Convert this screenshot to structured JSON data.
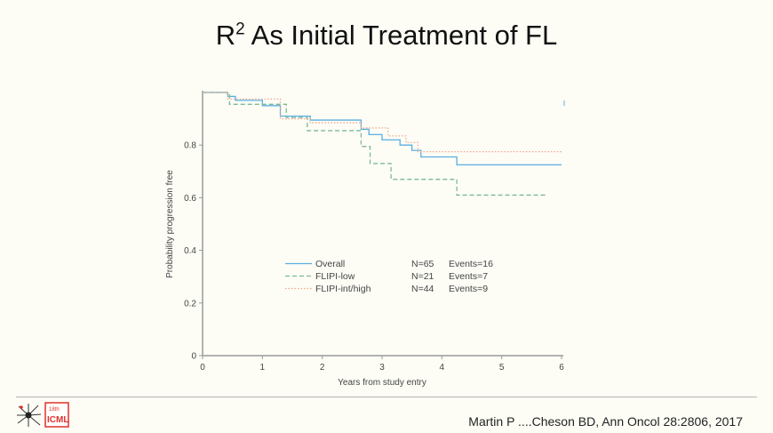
{
  "slide": {
    "title_prefix": "R",
    "title_sup": "2",
    "title_rest": " As Initial Treatment of FL",
    "citation": "Martin P ....Cheson BD, Ann Oncol 28:2806, 2017",
    "logo": {
      "edition": "18th",
      "name": "ICML",
      "color": "#e0312b"
    }
  },
  "chart_data": {
    "type": "line",
    "subtype": "kaplan-meier step",
    "title": "",
    "xlabel": "Years from study entry",
    "ylabel": "Probability progression free",
    "xlim": [
      0,
      6
    ],
    "ylim": [
      0,
      1
    ],
    "xticks": [
      "0",
      "1",
      "2",
      "3",
      "4",
      "5",
      "6"
    ],
    "yticks": [
      "0",
      "0.2",
      "0.4",
      "0.6",
      "0.8"
    ],
    "ytick_values": [
      0,
      0.2,
      0.4,
      0.6,
      0.8
    ],
    "grid": false,
    "legend_position": "bottom-center",
    "series": [
      {
        "name": "Overall",
        "n_label": "N=65",
        "events_label": "Events=16",
        "color": "#5aaee0",
        "dash": "solid",
        "x": [
          0,
          0.42,
          0.55,
          1.0,
          1.3,
          1.8,
          2.65,
          2.78,
          3.0,
          3.3,
          3.5,
          3.65,
          4.25,
          6.0
        ],
        "y": [
          1.0,
          0.985,
          0.97,
          0.95,
          0.91,
          0.895,
          0.86,
          0.84,
          0.82,
          0.8,
          0.78,
          0.755,
          0.725,
          0.725
        ]
      },
      {
        "name": "FLIPI-low",
        "n_label": "N=21",
        "events_label": "Events=7",
        "color": "#7cb89a",
        "dash": "dashed",
        "x": [
          0,
          0.45,
          1.4,
          1.75,
          2.65,
          2.8,
          3.15,
          4.25,
          5.75
        ],
        "y": [
          1.0,
          0.955,
          0.905,
          0.855,
          0.795,
          0.73,
          0.67,
          0.61,
          0.61
        ]
      },
      {
        "name": "FLIPI-int/high",
        "n_label": "N=44",
        "events_label": "Events=9",
        "color": "#f2a78a",
        "dash": "dotted",
        "x": [
          0,
          0.42,
          1.3,
          1.8,
          2.65,
          3.1,
          3.4,
          3.6,
          6.0
        ],
        "y": [
          1.0,
          0.975,
          0.9,
          0.885,
          0.865,
          0.835,
          0.81,
          0.775,
          0.775
        ]
      }
    ]
  }
}
